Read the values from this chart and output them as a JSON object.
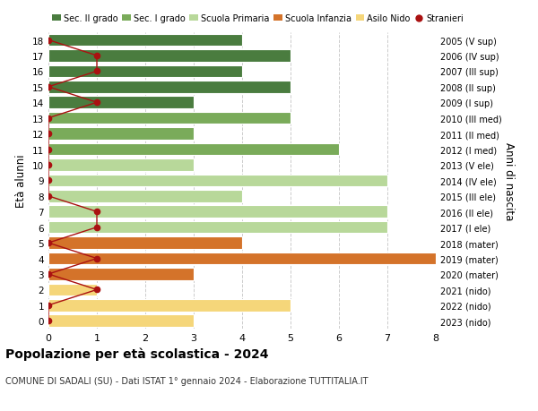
{
  "ages": [
    18,
    17,
    16,
    15,
    14,
    13,
    12,
    11,
    10,
    9,
    8,
    7,
    6,
    5,
    4,
    3,
    2,
    1,
    0
  ],
  "right_labels": [
    "2005 (V sup)",
    "2006 (IV sup)",
    "2007 (III sup)",
    "2008 (II sup)",
    "2009 (I sup)",
    "2010 (III med)",
    "2011 (II med)",
    "2012 (I med)",
    "2013 (V ele)",
    "2014 (IV ele)",
    "2015 (III ele)",
    "2016 (II ele)",
    "2017 (I ele)",
    "2018 (mater)",
    "2019 (mater)",
    "2020 (mater)",
    "2021 (nido)",
    "2022 (nido)",
    "2023 (nido)"
  ],
  "bar_values": [
    4,
    5,
    4,
    5,
    3,
    5,
    3,
    6,
    3,
    7,
    4,
    7,
    7,
    4,
    8,
    3,
    1,
    5,
    3
  ],
  "bar_colors": [
    "#4a7c3f",
    "#4a7c3f",
    "#4a7c3f",
    "#4a7c3f",
    "#4a7c3f",
    "#7aab5a",
    "#7aab5a",
    "#7aab5a",
    "#b8d89a",
    "#b8d89a",
    "#b8d89a",
    "#b8d89a",
    "#b8d89a",
    "#d4732a",
    "#d4732a",
    "#d4732a",
    "#f5d67a",
    "#f5d67a",
    "#f5d67a"
  ],
  "stranieri_x": [
    0,
    1,
    1,
    0,
    1,
    0,
    0,
    0,
    0,
    0,
    0,
    1,
    1,
    0,
    1,
    0,
    1,
    0,
    0
  ],
  "legend_labels": [
    "Sec. II grado",
    "Sec. I grado",
    "Scuola Primaria",
    "Scuola Infanzia",
    "Asilo Nido",
    "Stranieri"
  ],
  "legend_colors": [
    "#4a7c3f",
    "#7aab5a",
    "#b8d89a",
    "#d4732a",
    "#f5d67a",
    "#cc2222"
  ],
  "title": "Popolazione per età scolastica - 2024",
  "subtitle": "COMUNE DI SADALI (SU) - Dati ISTAT 1° gennaio 2024 - Elaborazione TUTTITALIA.IT",
  "ylabel": "Età alunni",
  "right_ylabel": "Anni di nascita",
  "xlim": [
    0,
    8
  ],
  "background_color": "#ffffff",
  "bar_height": 0.78,
  "stranieri_color": "#aa1111",
  "grid_color": "#cccccc",
  "grid_style": "--"
}
